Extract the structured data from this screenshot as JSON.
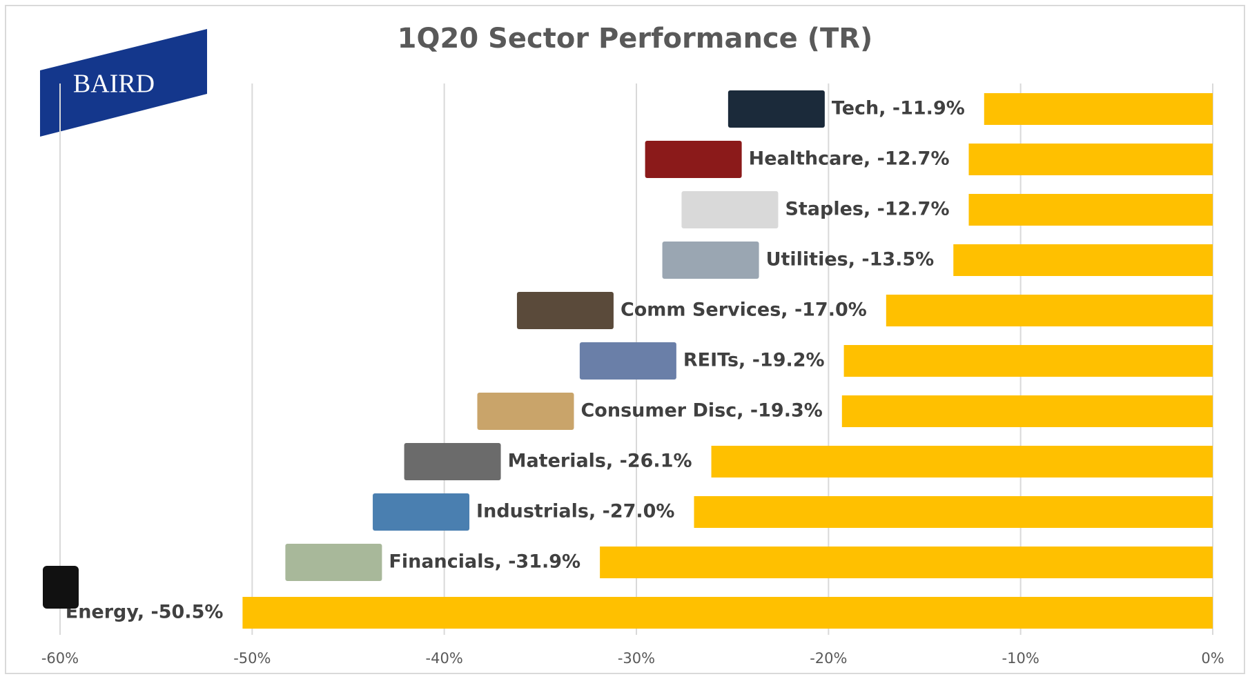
{
  "chart_data": {
    "type": "hbar",
    "title": "1Q20 Sector Performance (TR)",
    "logo": "BAIRD",
    "values": [
      -11.9,
      -12.7,
      -12.7,
      -13.5,
      -17.0,
      -19.2,
      -19.3,
      -26.1,
      -27.0,
      -31.9,
      -50.5
    ],
    "value_labels": [
      "Tech, -11.9%",
      "Healthcare, -12.7%",
      "Staples, -12.7%",
      "Utilities, -13.5%",
      "Comm Services, -17.0%",
      "REITs, -19.2%",
      "Consumer Disc, -19.3%",
      "Materials, -26.1%",
      "Industrials, -27.0%",
      "Financials, -31.9%",
      "Energy, -50.5%"
    ],
    "color": "#ffc000",
    "xlim": [
      -60,
      0
    ],
    "xticks": [
      {
        "value": -60,
        "label": "-60%"
      },
      {
        "value": -50,
        "label": "-50%"
      },
      {
        "value": -40,
        "label": "-40%"
      },
      {
        "value": -30,
        "label": "-30%"
      },
      {
        "value": -20,
        "label": "-20%"
      },
      {
        "value": -10,
        "label": "-10%"
      },
      {
        "value": 0,
        "label": "0%"
      }
    ],
    "grid": true
  }
}
